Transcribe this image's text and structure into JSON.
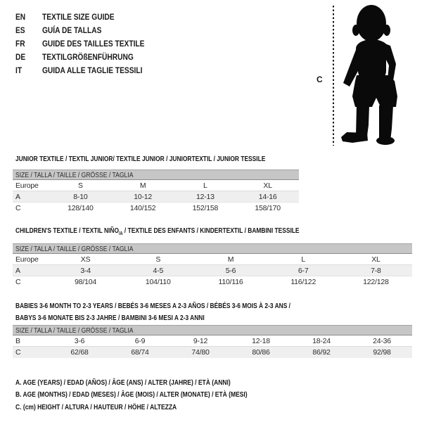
{
  "languages": [
    {
      "code": "EN",
      "title": "TEXTILE SIZE GUIDE"
    },
    {
      "code": "ES",
      "title": "GUÍA DE TALLAS"
    },
    {
      "code": "FR",
      "title": "GUIDE DES TAILLES TEXTILE"
    },
    {
      "code": "DE",
      "title": "TEXTILGRÖßENFÜHRUNG"
    },
    {
      "code": "IT",
      "title": "GUIDA ALLE TAGLIE TESSILI"
    }
  ],
  "figure": {
    "height_label": "C"
  },
  "tables": [
    {
      "title_lines": [
        [
          {
            "text": "JUNIOR TEXTILE / TEXTIL JUNIOR/ TEXTILE JUNIOR / JUNIORTEXTIL / JUNIOR TESSILE",
            "sub": false
          }
        ]
      ],
      "header": "SIZE / TALLA / TAILLE / GRÖSSE / TAGLIA",
      "rows": [
        {
          "label": "Europe",
          "values": [
            "S",
            "M",
            "L",
            "XL"
          ],
          "shaded": false
        },
        {
          "label": "A",
          "values": [
            "8-10",
            "10-12",
            "12-13",
            "14-16"
          ],
          "shaded": true
        },
        {
          "label": "C",
          "values": [
            "128/140",
            "140/152",
            "152/158",
            "158/170"
          ],
          "shaded": false
        }
      ]
    },
    {
      "title_lines": [
        [
          {
            "text": "CHILDREN'S TEXTILE / TEXTIL NIÑO",
            "sub": false
          },
          {
            "text": "/A",
            "sub": true
          },
          {
            "text": " / TEXTILE DES ENFANTS / KINDERTEXTIL / BAMBINI TESSILE",
            "sub": false
          }
        ]
      ],
      "header": "SIZE / TALLA / TAILLE / GRÖSSE / TAGLIA",
      "rows": [
        {
          "label": "Europe",
          "values": [
            "XS",
            "S",
            "M",
            "L",
            "XL"
          ],
          "shaded": false
        },
        {
          "label": "A",
          "values": [
            "3-4",
            "4-5",
            "5-6",
            "6-7",
            "7-8"
          ],
          "shaded": true
        },
        {
          "label": "C",
          "values": [
            "98/104",
            "104/110",
            "110/116",
            "116/122",
            "122/128"
          ],
          "shaded": false
        }
      ]
    },
    {
      "title_lines": [
        [
          {
            "text": "BABIES 3-6 MONTH TO 2-3 YEARS / BEBÉS 3-6 MESES A 2-3 AÑOS / BÉBÉS 3-6 MOIS À 2-3 ANS /",
            "sub": false
          }
        ],
        [
          {
            "text": "BABYS 3-6 MONATE BIS 2-3 JAHRE / BAMBINI 3-6 MESI A 2-3 ANNI",
            "sub": false
          }
        ]
      ],
      "header": "SIZE / TALLA / TAILLE / GRÖSSE / TAGLIA",
      "rows": [
        {
          "label": "B",
          "values": [
            "3-6",
            "6-9",
            "9-12",
            "12-18",
            "18-24",
            "24-36"
          ],
          "shaded": false
        },
        {
          "label": "C",
          "values": [
            "62/68",
            "68/74",
            "74/80",
            "80/86",
            "86/92",
            "92/98"
          ],
          "shaded": true
        }
      ]
    }
  ],
  "footnotes": [
    "A. AGE (YEARS) / EDAD (AÑOS) / ÂGE (ANS) / ALTER (JAHRE) / ETÀ (ANNI)",
    "B. AGE (MONTHS) / EDAD (MESES) / ÂGE (MOIS) / ALTER (MONATE) / ETÀ (MESI)",
    "C. (cm) HEIGHT / ALTURA / HAUTEUR / HÖHE / ALTEZZA"
  ],
  "colors": {
    "text": "#1a1a1a",
    "header_bar_bg": "#c6c6c6",
    "header_bar_border_top": "#a3a3a3",
    "header_bar_border_bottom": "#8d8d8d",
    "shaded_row_bg": "#efefef",
    "row_divider": "#dcdcdc",
    "silhouette": "#0a0a0a"
  }
}
